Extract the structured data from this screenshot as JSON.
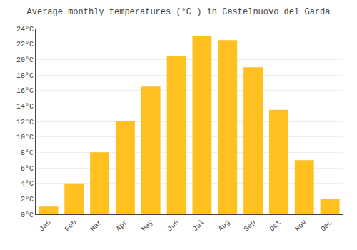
{
  "chart_data": {
    "type": "bar",
    "title": "Average monthly temperatures (°C ) in Castelnuovo del Garda",
    "categories": [
      "Jan",
      "Feb",
      "Mar",
      "Apr",
      "May",
      "Jun",
      "Jul",
      "Aug",
      "Sep",
      "Oct",
      "Nov",
      "Dec"
    ],
    "values": [
      1.0,
      4.0,
      8.0,
      12.0,
      16.5,
      20.5,
      23.0,
      22.5,
      19.0,
      13.5,
      7.0,
      2.0
    ],
    "color": "#FFC020",
    "ylim": [
      0,
      24
    ],
    "yticks": [
      {
        "value": 0,
        "label": "0°C"
      },
      {
        "value": 2,
        "label": "2°C"
      },
      {
        "value": 4,
        "label": "4°C"
      },
      {
        "value": 6,
        "label": "6°C"
      },
      {
        "value": 8,
        "label": "8°C"
      },
      {
        "value": 10,
        "label": "10°C"
      },
      {
        "value": 12,
        "label": "12°C"
      },
      {
        "value": 14,
        "label": "14°C"
      },
      {
        "value": 16,
        "label": "16°C"
      },
      {
        "value": 18,
        "label": "18°C"
      },
      {
        "value": 20,
        "label": "20°C"
      },
      {
        "value": 22,
        "label": "22°C"
      },
      {
        "value": 24,
        "label": "24°C"
      }
    ],
    "grid": true
  }
}
